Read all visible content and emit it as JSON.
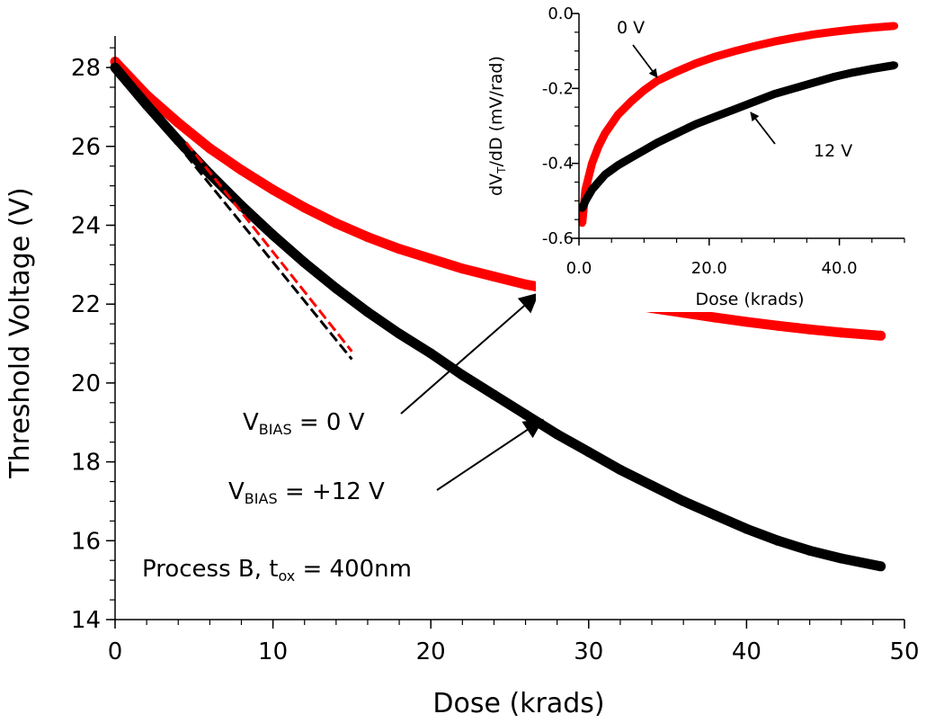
{
  "chart_data": [
    {
      "type": "line",
      "xlabel": "Dose (krads)",
      "ylabel": "Threshold Voltage (V)",
      "xlim": [
        0,
        50
      ],
      "ylim": [
        14,
        28.8
      ],
      "xticks": [
        "0",
        "10",
        "20",
        "30",
        "40",
        "50"
      ],
      "yticks": [
        "14",
        "16",
        "18",
        "20",
        "22",
        "24",
        "26",
        "28"
      ],
      "grid": false,
      "series": [
        {
          "color": "#ff0000",
          "x": [
            0,
            2,
            4,
            6,
            8,
            10,
            12,
            14,
            16,
            18,
            20,
            22,
            24,
            26,
            28,
            30,
            32,
            34,
            36,
            38,
            40,
            42,
            44,
            46,
            48.5
          ],
          "y": [
            28.15,
            27.3,
            26.6,
            25.95,
            25.4,
            24.9,
            24.45,
            24.05,
            23.7,
            23.4,
            23.15,
            22.9,
            22.7,
            22.5,
            22.35,
            22.2,
            22.05,
            21.9,
            21.78,
            21.66,
            21.55,
            21.45,
            21.36,
            21.28,
            21.2
          ]
        },
        {
          "color": "#000000",
          "x": [
            0,
            2,
            4,
            6,
            8,
            10,
            12,
            14,
            16,
            18,
            20,
            22,
            24,
            26,
            28,
            30,
            32,
            34,
            36,
            38,
            40,
            42,
            44,
            46,
            48.5
          ],
          "y": [
            28.0,
            27.05,
            26.15,
            25.3,
            24.5,
            23.75,
            23.05,
            22.4,
            21.8,
            21.25,
            20.75,
            20.2,
            19.7,
            19.2,
            18.7,
            18.25,
            17.8,
            17.4,
            17.0,
            16.65,
            16.3,
            16.0,
            15.75,
            15.55,
            15.35
          ]
        }
      ],
      "fit_lines": [
        {
          "color": "#ff0000",
          "x": [
            4.5,
            15
          ],
          "y": [
            26.1,
            20.8
          ]
        },
        {
          "color": "#000000",
          "x": [
            0.2,
            15
          ],
          "y": [
            27.9,
            20.6
          ]
        }
      ],
      "annotations": [
        {
          "base": "V",
          "sub": "BIAS",
          "rest": " = 0 V",
          "points_to": [
            26.5,
            22.4
          ]
        },
        {
          "base": "V",
          "sub": "BIAS",
          "rest": " = +12 V",
          "points_to": [
            26.5,
            19.1
          ]
        },
        {
          "base": "Process B, t",
          "sub": "ox",
          "rest": " = 400nm"
        }
      ]
    },
    {
      "type": "line",
      "xlabel": "Dose (krads)",
      "ylabel_parts": {
        "base": "dV",
        "sub": "T",
        "rest": "/dD (mV/rad)"
      },
      "xlim": [
        0,
        50
      ],
      "ylim": [
        -0.6,
        0
      ],
      "xticks": [
        "0.0",
        "20.0",
        "40.0"
      ],
      "yticks": [
        "0.0",
        "-0.2",
        "-0.4",
        "-0.6"
      ],
      "grid": false,
      "series": [
        {
          "color": "#ff0000",
          "x": [
            0.5,
            1,
            2,
            3,
            4,
            6,
            8,
            10,
            12,
            15,
            18,
            21,
            24,
            27,
            30,
            33,
            36,
            39,
            42,
            45,
            48.5
          ],
          "y": [
            -0.56,
            -0.47,
            -0.4,
            -0.355,
            -0.32,
            -0.27,
            -0.235,
            -0.205,
            -0.18,
            -0.155,
            -0.133,
            -0.115,
            -0.1,
            -0.087,
            -0.075,
            -0.065,
            -0.056,
            -0.049,
            -0.043,
            -0.038,
            -0.033
          ]
        },
        {
          "color": "#000000",
          "x": [
            0.5,
            1,
            2,
            3,
            4,
            6,
            8,
            10,
            12,
            15,
            18,
            21,
            24,
            27,
            30,
            33,
            36,
            39,
            42,
            45,
            48.5
          ],
          "y": [
            -0.52,
            -0.5,
            -0.47,
            -0.45,
            -0.43,
            -0.405,
            -0.385,
            -0.365,
            -0.345,
            -0.32,
            -0.295,
            -0.275,
            -0.255,
            -0.235,
            -0.215,
            -0.2,
            -0.185,
            -0.17,
            -0.158,
            -0.148,
            -0.138
          ]
        }
      ],
      "annotations": [
        {
          "text": "0 V",
          "points_to": [
            12.5,
            -0.175
          ]
        },
        {
          "text": "12 V",
          "points_to": [
            26.8,
            -0.245
          ]
        }
      ]
    }
  ]
}
